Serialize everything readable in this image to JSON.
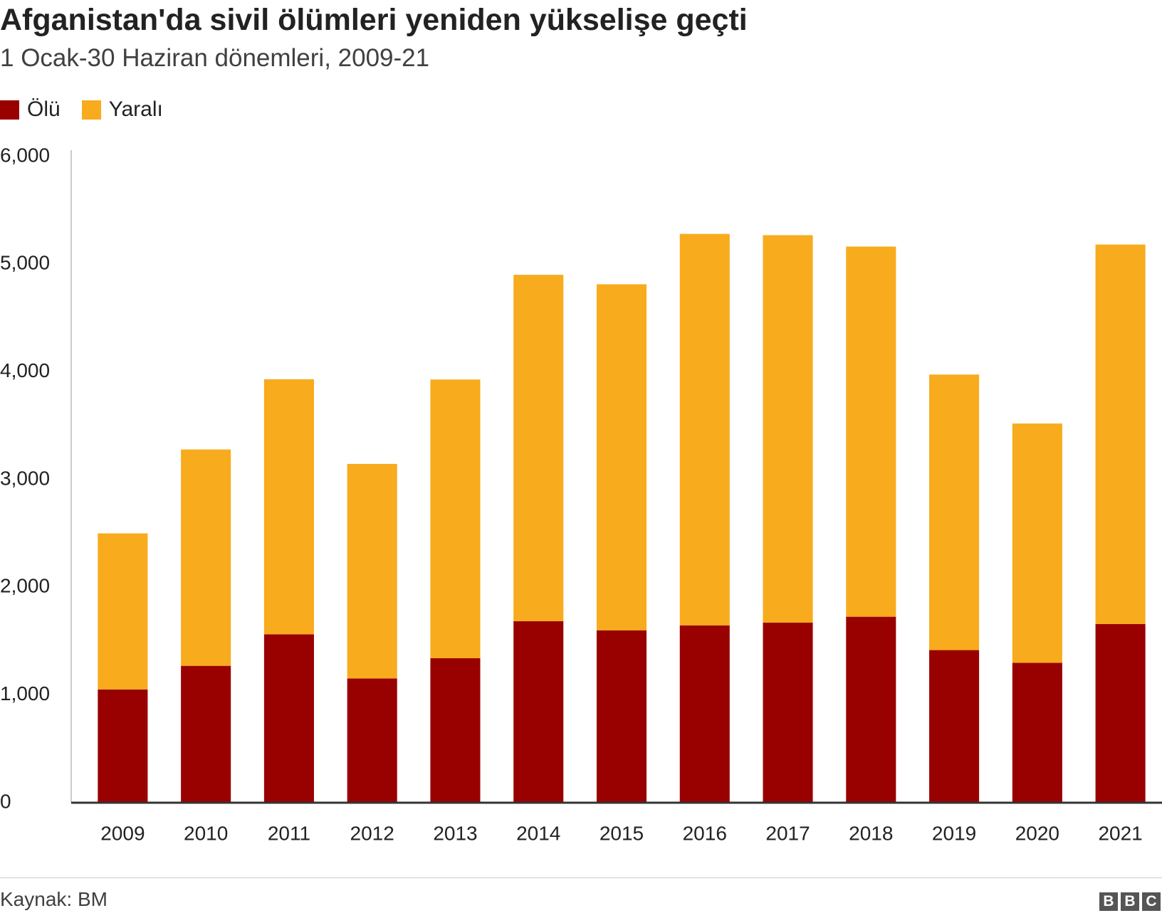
{
  "header": {
    "title": "Afganistan'da sivil ölümleri yeniden yükselişe geçti",
    "subtitle": "1 Ocak-30 Haziran dönemleri, 2009-21"
  },
  "legend": [
    {
      "label": "Ölü",
      "color": "#990000"
    },
    {
      "label": "Yaralı",
      "color": "#f7ab1d"
    }
  ],
  "footer": {
    "source": "Kaynak: BM",
    "logo_letters": [
      "B",
      "B",
      "C"
    ]
  },
  "chart_data": {
    "type": "bar",
    "stacked": true,
    "title": "Afganistan'da sivil ölümleri yeniden yükselişe geçti",
    "subtitle": "1 Ocak-30 Haziran dönemleri, 2009-21",
    "xlabel": "",
    "ylabel": "",
    "categories": [
      "2009",
      "2010",
      "2011",
      "2012",
      "2013",
      "2014",
      "2015",
      "2016",
      "2017",
      "2018",
      "2019",
      "2020",
      "2021"
    ],
    "series": [
      {
        "name": "Ölü",
        "color": "#990000",
        "values": [
          1052,
          1271,
          1564,
          1154,
          1342,
          1686,
          1601,
          1647,
          1672,
          1727,
          1417,
          1299,
          1659
        ]
      },
      {
        "name": "Yaralı",
        "color": "#f7ab1d",
        "values": [
          1449,
          2009,
          2368,
          1992,
          2588,
          3216,
          3213,
          3635,
          3598,
          3437,
          2559,
          2222,
          3524
        ]
      }
    ],
    "ylim": [
      0,
      6000
    ],
    "yticks": [
      0,
      1000,
      2000,
      3000,
      4000,
      5000,
      6000
    ],
    "ytick_labels": [
      "0",
      "1,000",
      "2,000",
      "3,000",
      "4,000",
      "5,000",
      "6,000"
    ],
    "grid": false,
    "legend_position": "top-left",
    "source": "Kaynak: BM"
  }
}
